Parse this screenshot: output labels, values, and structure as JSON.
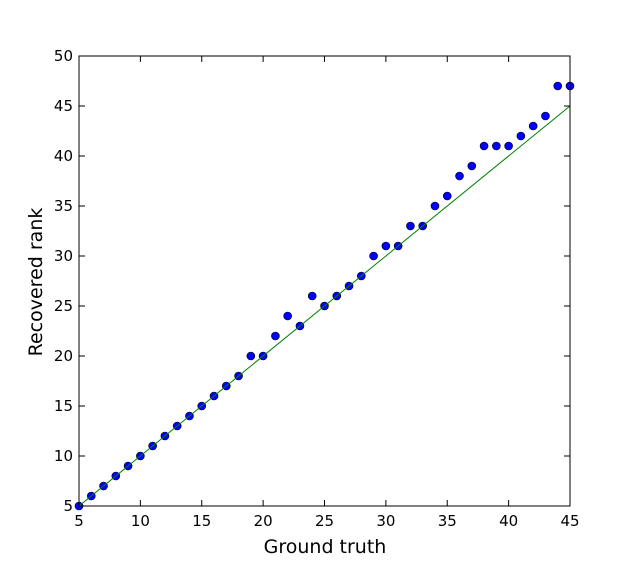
{
  "chart_data": {
    "type": "scatter",
    "x_label": "Ground truth",
    "y_label": "Recovered rank",
    "xlim": [
      5,
      45
    ],
    "ylim": [
      5,
      50
    ],
    "xticks": [
      5,
      10,
      15,
      20,
      25,
      30,
      35,
      40,
      45
    ],
    "yticks": [
      5,
      10,
      15,
      20,
      25,
      30,
      35,
      40,
      45,
      50
    ],
    "series": [
      {
        "color": "#0000ff",
        "kind": "points",
        "x": [
          5,
          6,
          7,
          8,
          9,
          10,
          11,
          12,
          13,
          14,
          15,
          16,
          17,
          18,
          19,
          20,
          21,
          22,
          23,
          24,
          25,
          26,
          27,
          28,
          29,
          30,
          31,
          32,
          33,
          34,
          35,
          36,
          37,
          38,
          39,
          40,
          41,
          42,
          43,
          44,
          45
        ],
        "values": [
          5,
          6,
          7,
          8,
          9,
          10,
          11,
          12,
          13,
          14,
          15,
          16,
          17,
          18,
          20,
          20,
          22,
          24,
          23,
          26,
          25,
          26,
          27,
          28,
          30,
          31,
          31,
          33,
          33,
          35,
          36,
          38,
          39,
          41,
          41,
          41,
          42,
          43,
          44,
          47,
          47
        ]
      },
      {
        "color": "#008000",
        "kind": "line",
        "x": [
          5,
          45
        ],
        "values": [
          5,
          45
        ]
      }
    ]
  }
}
